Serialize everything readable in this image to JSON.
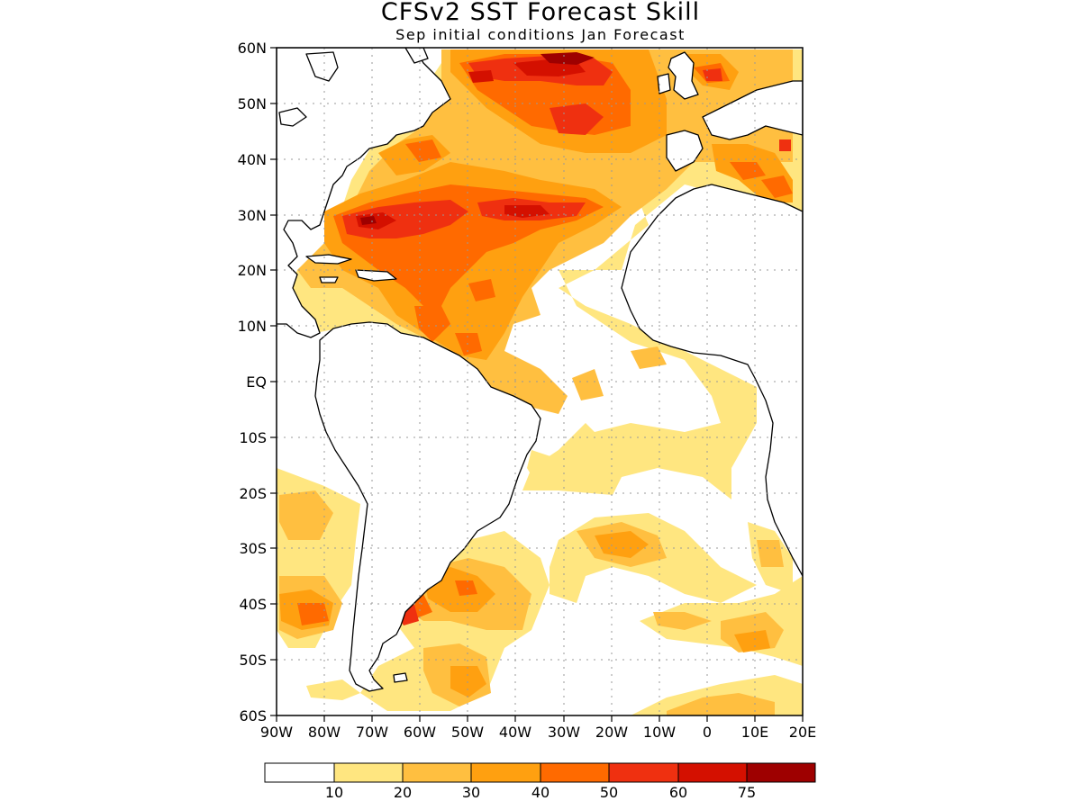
{
  "figure": {
    "title": "CFSv2 SST Forecast Skill",
    "subtitle": "Sep initial conditions  Jan Forecast"
  },
  "map": {
    "lon_range": [
      -90,
      20
    ],
    "lat_range": [
      -60,
      60
    ],
    "y_ticks": [
      "60N",
      "50N",
      "40N",
      "30N",
      "20N",
      "10N",
      "EQ",
      "10S",
      "20S",
      "30S",
      "40S",
      "50S",
      "60S"
    ],
    "x_ticks": [
      "90W",
      "80W",
      "70W",
      "60W",
      "50W",
      "40W",
      "30W",
      "20W",
      "10W",
      "0",
      "10E",
      "20E"
    ],
    "grid": "dotted",
    "land_color": "#ffffff",
    "coastline_color": "#000000"
  },
  "colorbar": {
    "colors": [
      "#ffffff",
      "#ffe680",
      "#ffbf40",
      "#ffa010",
      "#ff6a00",
      "#ef3010",
      "#d41000",
      "#9e0000"
    ],
    "labels": [
      "10",
      "20",
      "30",
      "40",
      "50",
      "60",
      "75"
    ]
  }
}
